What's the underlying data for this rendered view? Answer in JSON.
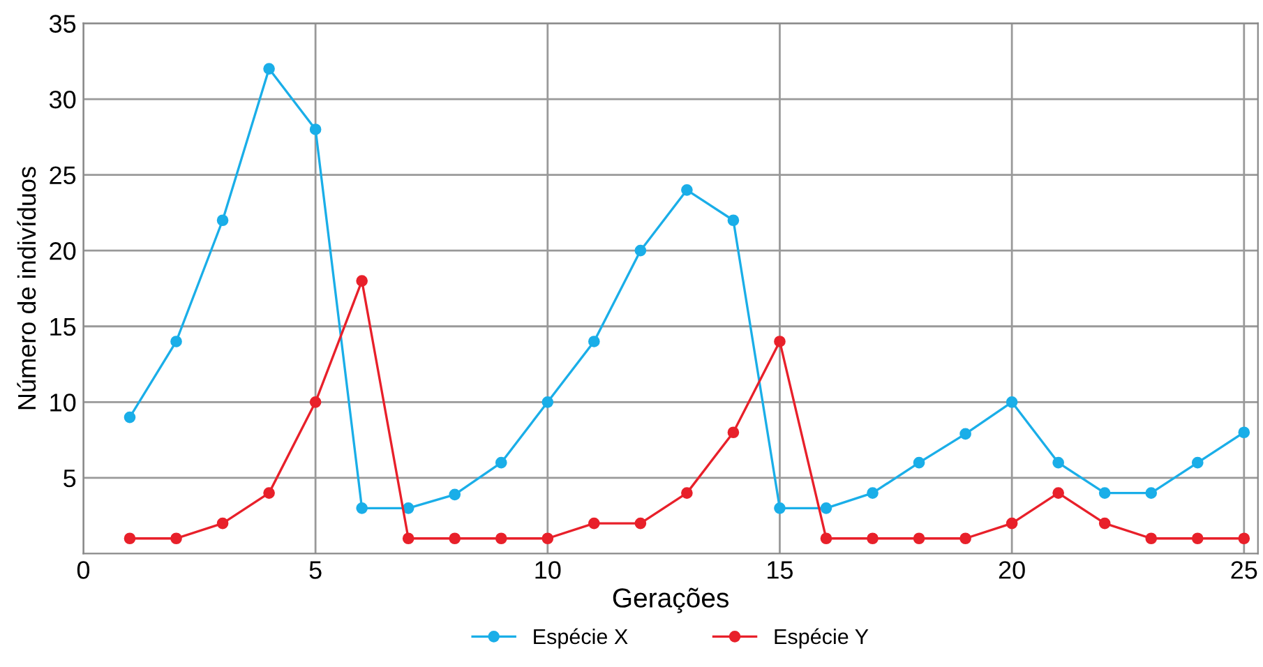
{
  "chart_data": {
    "type": "line",
    "xlabel": "Gerações",
    "ylabel": "Número de indivíduos",
    "x": [
      1,
      2,
      3,
      4,
      5,
      6,
      7,
      8,
      9,
      10,
      11,
      12,
      13,
      14,
      15,
      16,
      17,
      18,
      19,
      20,
      21,
      22,
      23,
      24,
      25
    ],
    "series": [
      {
        "name": "Espécie X",
        "color": "#1aaee8",
        "values": [
          9,
          14,
          22,
          32,
          28,
          3,
          3,
          3.9,
          6,
          10,
          14,
          20,
          24,
          22,
          3,
          3,
          4,
          6,
          7.9,
          10,
          6,
          4,
          4,
          6,
          8
        ]
      },
      {
        "name": "Espécie Y",
        "color": "#e8202a",
        "values": [
          1,
          1,
          2,
          4,
          10,
          18,
          1,
          1,
          1,
          1,
          2,
          2,
          4,
          8,
          14,
          1,
          1,
          1,
          1,
          2,
          4,
          2,
          1,
          1,
          1
        ]
      }
    ],
    "xlim": [
      0,
      25.3
    ],
    "ylim": [
      0,
      35
    ],
    "xticks": [
      0,
      5,
      10,
      15,
      20,
      25
    ],
    "yticks": [
      5,
      10,
      15,
      20,
      25,
      30,
      35
    ],
    "grid": true,
    "legend": "bottom",
    "marker": "circle",
    "line_style": "solid"
  }
}
